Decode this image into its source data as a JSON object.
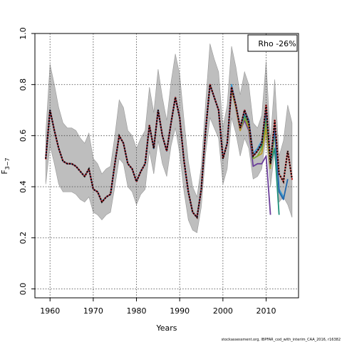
{
  "chart_data": {
    "type": "line",
    "xlabel": "Years",
    "ylabel": "F",
    "ylabel_sub": "3−7",
    "xlim": [
      1956.5,
      2017.5
    ],
    "ylim": [
      -0.035,
      1.0
    ],
    "x_ticks": [
      1960,
      1970,
      1980,
      1990,
      2000,
      2010
    ],
    "x_tick_labels": [
      "1960",
      "1970",
      "1980",
      "1990",
      "2000",
      "2010"
    ],
    "y_ticks": [
      0.0,
      0.2,
      0.4,
      0.6,
      0.8,
      1.0
    ],
    "y_tick_labels": [
      "0.0",
      "0.2",
      "0.4",
      "0.6",
      "0.8",
      "1.0"
    ],
    "grid": true,
    "legend": {
      "text": "Rho -26%",
      "placement": "top-right"
    },
    "credit": "stockassessment.org, IBPFAR_cod_with_interim_CAA_2016, r16382",
    "colors": {
      "band": "#bebebe",
      "band_edge": "#999999",
      "retro": [
        "#2166ac",
        "#3a9ad0",
        "#1f8f7a",
        "#7da63b",
        "#b89a25",
        "#6a3d9a"
      ],
      "dotted": "#000000",
      "dotted_highlight": "#d62728"
    },
    "ci_band": {
      "x": [
        1959,
        1960,
        1961,
        1962,
        1963,
        1964,
        1965,
        1966,
        1967,
        1968,
        1969,
        1970,
        1971,
        1972,
        1973,
        1974,
        1975,
        1976,
        1977,
        1978,
        1979,
        1980,
        1981,
        1982,
        1983,
        1984,
        1985,
        1986,
        1987,
        1988,
        1989,
        1990,
        1991,
        1992,
        1993,
        1994,
        1995,
        1996,
        1997,
        1998,
        1999,
        2000,
        2001,
        2002,
        2003,
        2004,
        2005,
        2006,
        2007,
        2008,
        2009,
        2010,
        2011,
        2012,
        2013,
        2014,
        2015,
        2016
      ],
      "upper": [
        0.61,
        0.88,
        0.8,
        0.71,
        0.65,
        0.63,
        0.63,
        0.62,
        0.59,
        0.57,
        0.61,
        0.51,
        0.49,
        0.45,
        0.47,
        0.48,
        0.6,
        0.74,
        0.71,
        0.62,
        0.6,
        0.55,
        0.59,
        0.62,
        0.79,
        0.69,
        0.86,
        0.75,
        0.66,
        0.81,
        0.92,
        0.84,
        0.66,
        0.5,
        0.4,
        0.36,
        0.48,
        0.73,
        0.96,
        0.9,
        0.85,
        0.63,
        0.72,
        0.95,
        0.87,
        0.76,
        0.85,
        0.8,
        0.65,
        0.63,
        0.68,
        0.89,
        0.58,
        0.82,
        0.52,
        0.58,
        0.72,
        0.65
      ],
      "lower": [
        0.41,
        0.56,
        0.49,
        0.41,
        0.38,
        0.38,
        0.38,
        0.37,
        0.35,
        0.34,
        0.36,
        0.3,
        0.29,
        0.27,
        0.29,
        0.3,
        0.4,
        0.51,
        0.49,
        0.4,
        0.38,
        0.33,
        0.37,
        0.39,
        0.54,
        0.45,
        0.58,
        0.49,
        0.44,
        0.56,
        0.63,
        0.53,
        0.38,
        0.27,
        0.23,
        0.22,
        0.32,
        0.53,
        0.67,
        0.63,
        0.59,
        0.41,
        0.47,
        0.67,
        0.61,
        0.52,
        0.59,
        0.55,
        0.43,
        0.44,
        0.47,
        0.6,
        0.4,
        0.54,
        0.34,
        0.36,
        0.33,
        0.28
      ]
    },
    "series": [
      {
        "x": [
          1959,
          1960,
          1961,
          1962,
          1963,
          1964,
          1965,
          1966,
          1967,
          1968,
          1969,
          1970,
          1971,
          1972,
          1973,
          1974,
          1975,
          1976,
          1977,
          1978,
          1979,
          1980,
          1981,
          1982,
          1983,
          1984,
          1985,
          1986,
          1987,
          1988,
          1989,
          1990,
          1991,
          1992,
          1993,
          1994,
          1995,
          1996,
          1997,
          1998,
          1999,
          2000,
          2001,
          2002,
          2003,
          2004,
          2005,
          2006,
          2007,
          2008,
          2009,
          2010,
          2011,
          2012,
          2013,
          2014,
          2015,
          2016
        ],
        "y": [
          0.51,
          0.7,
          0.62,
          0.55,
          0.5,
          0.49,
          0.49,
          0.48,
          0.46,
          0.44,
          0.47,
          0.39,
          0.38,
          0.34,
          0.36,
          0.37,
          0.49,
          0.6,
          0.57,
          0.49,
          0.47,
          0.42,
          0.46,
          0.49,
          0.64,
          0.55,
          0.7,
          0.6,
          0.54,
          0.65,
          0.75,
          0.67,
          0.5,
          0.38,
          0.3,
          0.28,
          0.39,
          0.62,
          0.8,
          0.75,
          0.7,
          0.51,
          0.57,
          0.79,
          0.72,
          0.63,
          0.7,
          0.65,
          0.52,
          0.54,
          0.57,
          0.72,
          0.49,
          0.66,
          0.45,
          0.42,
          0.54,
          0.43
        ],
        "style": "dotted"
      },
      {
        "x": [
          1959,
          1960,
          1961,
          1962,
          1963,
          1964,
          1965,
          1966,
          1967,
          1968,
          1969,
          1970,
          1971,
          1972,
          1973,
          1974,
          1975,
          1976,
          1977,
          1978,
          1979,
          1980,
          1981,
          1982,
          1983,
          1984,
          1985,
          1986,
          1987,
          1988,
          1989,
          1990,
          1991,
          1992,
          1993,
          1994,
          1995,
          1996,
          1997,
          1998,
          1999,
          2000,
          2001,
          2002,
          2003,
          2004,
          2005,
          2006,
          2007,
          2008,
          2009,
          2010,
          2011,
          2012,
          2013,
          2014,
          2015
        ],
        "y": [
          0.51,
          0.7,
          0.62,
          0.55,
          0.5,
          0.49,
          0.49,
          0.48,
          0.46,
          0.44,
          0.47,
          0.39,
          0.38,
          0.34,
          0.36,
          0.37,
          0.49,
          0.6,
          0.57,
          0.49,
          0.47,
          0.42,
          0.46,
          0.49,
          0.64,
          0.55,
          0.7,
          0.6,
          0.54,
          0.65,
          0.75,
          0.67,
          0.5,
          0.38,
          0.3,
          0.28,
          0.39,
          0.62,
          0.8,
          0.75,
          0.7,
          0.51,
          0.57,
          0.79,
          0.72,
          0.63,
          0.7,
          0.66,
          0.52,
          0.54,
          0.57,
          0.7,
          0.5,
          0.63,
          0.38,
          0.35,
          0.43
        ],
        "style": "solid"
      },
      {
        "x": [
          1959,
          1960,
          1961,
          1962,
          1963,
          1964,
          1965,
          1966,
          1967,
          1968,
          1969,
          1970,
          1971,
          1972,
          1973,
          1974,
          1975,
          1976,
          1977,
          1978,
          1979,
          1980,
          1981,
          1982,
          1983,
          1984,
          1985,
          1986,
          1987,
          1988,
          1989,
          1990,
          1991,
          1992,
          1993,
          1994,
          1995,
          1996,
          1997,
          1998,
          1999,
          2000,
          2001,
          2002,
          2003,
          2004,
          2005,
          2006,
          2007,
          2008,
          2009,
          2010,
          2011,
          2012,
          2013,
          2014
        ],
        "y": [
          0.51,
          0.7,
          0.62,
          0.55,
          0.5,
          0.49,
          0.49,
          0.48,
          0.46,
          0.44,
          0.47,
          0.39,
          0.38,
          0.34,
          0.36,
          0.37,
          0.49,
          0.6,
          0.57,
          0.49,
          0.47,
          0.42,
          0.46,
          0.49,
          0.64,
          0.55,
          0.7,
          0.6,
          0.54,
          0.65,
          0.75,
          0.67,
          0.5,
          0.38,
          0.3,
          0.28,
          0.39,
          0.62,
          0.8,
          0.75,
          0.7,
          0.51,
          0.57,
          0.8,
          0.72,
          0.63,
          0.69,
          0.66,
          0.53,
          0.55,
          0.58,
          0.71,
          0.5,
          0.62,
          0.39,
          0.36
        ],
        "style": "solid"
      },
      {
        "x": [
          1959,
          1960,
          1961,
          1962,
          1963,
          1964,
          1965,
          1966,
          1967,
          1968,
          1969,
          1970,
          1971,
          1972,
          1973,
          1974,
          1975,
          1976,
          1977,
          1978,
          1979,
          1980,
          1981,
          1982,
          1983,
          1984,
          1985,
          1986,
          1987,
          1988,
          1989,
          1990,
          1991,
          1992,
          1993,
          1994,
          1995,
          1996,
          1997,
          1998,
          1999,
          2000,
          2001,
          2002,
          2003,
          2004,
          2005,
          2006,
          2007,
          2008,
          2009,
          2010,
          2011,
          2012,
          2013
        ],
        "y": [
          0.51,
          0.7,
          0.62,
          0.55,
          0.5,
          0.49,
          0.49,
          0.48,
          0.46,
          0.44,
          0.47,
          0.39,
          0.38,
          0.34,
          0.36,
          0.37,
          0.49,
          0.6,
          0.57,
          0.49,
          0.47,
          0.42,
          0.46,
          0.49,
          0.64,
          0.55,
          0.7,
          0.6,
          0.54,
          0.65,
          0.75,
          0.67,
          0.5,
          0.38,
          0.3,
          0.28,
          0.39,
          0.62,
          0.8,
          0.75,
          0.7,
          0.51,
          0.57,
          0.79,
          0.72,
          0.63,
          0.68,
          0.65,
          0.52,
          0.54,
          0.56,
          0.69,
          0.49,
          0.55,
          0.29
        ],
        "style": "solid"
      },
      {
        "x": [
          1959,
          1960,
          1961,
          1962,
          1963,
          1964,
          1965,
          1966,
          1967,
          1968,
          1969,
          1970,
          1971,
          1972,
          1973,
          1974,
          1975,
          1976,
          1977,
          1978,
          1979,
          1980,
          1981,
          1982,
          1983,
          1984,
          1985,
          1986,
          1987,
          1988,
          1989,
          1990,
          1991,
          1992,
          1993,
          1994,
          1995,
          1996,
          1997,
          1998,
          1999,
          2000,
          2001,
          2002,
          2003,
          2004,
          2005,
          2006,
          2007,
          2008,
          2009,
          2010,
          2011,
          2012
        ],
        "y": [
          0.51,
          0.7,
          0.62,
          0.55,
          0.5,
          0.49,
          0.49,
          0.48,
          0.46,
          0.44,
          0.47,
          0.39,
          0.38,
          0.34,
          0.36,
          0.37,
          0.49,
          0.6,
          0.57,
          0.49,
          0.47,
          0.42,
          0.46,
          0.49,
          0.64,
          0.55,
          0.7,
          0.6,
          0.54,
          0.65,
          0.75,
          0.67,
          0.5,
          0.38,
          0.3,
          0.28,
          0.39,
          0.62,
          0.8,
          0.75,
          0.7,
          0.51,
          0.57,
          0.79,
          0.72,
          0.63,
          0.67,
          0.64,
          0.51,
          0.52,
          0.55,
          0.66,
          0.48,
          0.6
        ],
        "style": "solid"
      },
      {
        "x": [
          1959,
          1960,
          1961,
          1962,
          1963,
          1964,
          1965,
          1966,
          1967,
          1968,
          1969,
          1970,
          1971,
          1972,
          1973,
          1974,
          1975,
          1976,
          1977,
          1978,
          1979,
          1980,
          1981,
          1982,
          1983,
          1984,
          1985,
          1986,
          1987,
          1988,
          1989,
          1990,
          1991,
          1992,
          1993,
          1994,
          1995,
          1996,
          1997,
          1998,
          1999,
          2000,
          2001,
          2002,
          2003,
          2004,
          2005,
          2006,
          2007,
          2008,
          2009,
          2010,
          2011
        ],
        "y": [
          0.51,
          0.7,
          0.62,
          0.55,
          0.5,
          0.49,
          0.49,
          0.48,
          0.46,
          0.44,
          0.47,
          0.39,
          0.38,
          0.34,
          0.36,
          0.37,
          0.49,
          0.6,
          0.57,
          0.49,
          0.47,
          0.42,
          0.46,
          0.49,
          0.64,
          0.55,
          0.7,
          0.6,
          0.54,
          0.65,
          0.75,
          0.67,
          0.5,
          0.38,
          0.3,
          0.28,
          0.39,
          0.62,
          0.8,
          0.75,
          0.7,
          0.51,
          0.57,
          0.78,
          0.71,
          0.62,
          0.67,
          0.63,
          0.51,
          0.52,
          0.53,
          0.63,
          0.47
        ],
        "style": "solid"
      },
      {
        "x": [
          1959,
          1960,
          1961,
          1962,
          1963,
          1964,
          1965,
          1966,
          1967,
          1968,
          1969,
          1970,
          1971,
          1972,
          1973,
          1974,
          1975,
          1976,
          1977,
          1978,
          1979,
          1980,
          1981,
          1982,
          1983,
          1984,
          1985,
          1986,
          1987,
          1988,
          1989,
          1990,
          1991,
          1992,
          1993,
          1994,
          1995,
          1996,
          1997,
          1998,
          1999,
          2000,
          2001,
          2002,
          2003,
          2004,
          2005,
          2006,
          2007,
          2008,
          2009,
          2010,
          2011
        ],
        "y": [
          0.51,
          0.7,
          0.62,
          0.55,
          0.5,
          0.49,
          0.49,
          0.48,
          0.46,
          0.44,
          0.47,
          0.39,
          0.38,
          0.34,
          0.36,
          0.37,
          0.49,
          0.6,
          0.57,
          0.49,
          0.47,
          0.42,
          0.46,
          0.49,
          0.64,
          0.55,
          0.7,
          0.6,
          0.54,
          0.65,
          0.75,
          0.67,
          0.5,
          0.38,
          0.3,
          0.28,
          0.39,
          0.62,
          0.8,
          0.75,
          0.7,
          0.51,
          0.57,
          0.78,
          0.71,
          0.62,
          0.66,
          0.62,
          0.48,
          0.49,
          0.49,
          0.52,
          0.29
        ],
        "style": "solid"
      }
    ]
  }
}
